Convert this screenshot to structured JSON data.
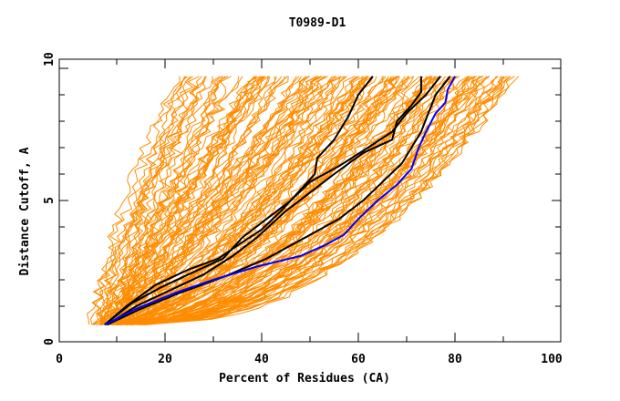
{
  "chart_data": {
    "type": "line",
    "title": "T0989-D1",
    "xlabel": "Percent of Residues (CA)",
    "ylabel": "Distance Cutoff, A",
    "xlim": [
      0,
      100
    ],
    "ylim": [
      0,
      10
    ],
    "xticks": [
      0,
      20,
      40,
      60,
      80,
      100
    ],
    "yticks": [
      0,
      5,
      10
    ],
    "grid": false,
    "legend": "none",
    "colors": {
      "models": "#ff8c00",
      "highlight": "#000000",
      "best": "#0000ff",
      "axis": "#000000"
    },
    "highlight_series": [
      {
        "name": "black-1",
        "color": "#000000",
        "points": [
          [
            7.5,
            0.3
          ],
          [
            12,
            1.0
          ],
          [
            18,
            1.8
          ],
          [
            25,
            2.4
          ],
          [
            31,
            2.8
          ],
          [
            35,
            3.3
          ],
          [
            40,
            3.9
          ],
          [
            44,
            4.6
          ],
          [
            48,
            5.4
          ],
          [
            51,
            6.0
          ],
          [
            51.5,
            6.6
          ],
          [
            55,
            7.3
          ],
          [
            58,
            8.2
          ],
          [
            60,
            9.0
          ],
          [
            63,
            9.7
          ]
        ]
      },
      {
        "name": "black-2",
        "color": "#000000",
        "points": [
          [
            7.5,
            0.3
          ],
          [
            13,
            1.1
          ],
          [
            19,
            1.7
          ],
          [
            26,
            2.3
          ],
          [
            32,
            2.8
          ],
          [
            36,
            3.6
          ],
          [
            41,
            4.3
          ],
          [
            46,
            5.0
          ],
          [
            50,
            5.7
          ],
          [
            56,
            6.3
          ],
          [
            62,
            7.0
          ],
          [
            67,
            7.6
          ],
          [
            70,
            8.3
          ],
          [
            74,
            9.0
          ],
          [
            77,
            9.7
          ]
        ]
      },
      {
        "name": "black-3",
        "color": "#000000",
        "points": [
          [
            8,
            0.3
          ],
          [
            14,
            1.0
          ],
          [
            21,
            1.6
          ],
          [
            28,
            2.2
          ],
          [
            34,
            2.9
          ],
          [
            39,
            3.6
          ],
          [
            45,
            4.6
          ],
          [
            50,
            5.3
          ],
          [
            55,
            6.0
          ],
          [
            61,
            6.8
          ],
          [
            67,
            7.3
          ],
          [
            68,
            8.0
          ],
          [
            71,
            8.6
          ],
          [
            73,
            9.1
          ],
          [
            73,
            9.7
          ]
        ]
      },
      {
        "name": "black-4",
        "color": "#000000",
        "points": [
          [
            8,
            0.3
          ],
          [
            15,
            0.9
          ],
          [
            23,
            1.5
          ],
          [
            32,
            2.1
          ],
          [
            41,
            2.8
          ],
          [
            49,
            3.6
          ],
          [
            56,
            4.3
          ],
          [
            61,
            5.0
          ],
          [
            65,
            5.7
          ],
          [
            69,
            6.4
          ],
          [
            71,
            7.0
          ],
          [
            73,
            7.6
          ],
          [
            74.5,
            8.3
          ],
          [
            76,
            9.0
          ],
          [
            79,
            9.7
          ]
        ]
      }
    ],
    "best_series": {
      "name": "blue",
      "color": "#0000ff",
      "points": [
        [
          7.5,
          0.3
        ],
        [
          14,
          0.9
        ],
        [
          22,
          1.5
        ],
        [
          30,
          2.0
        ],
        [
          39,
          2.5
        ],
        [
          48,
          2.9
        ],
        [
          53,
          3.3
        ],
        [
          57,
          3.7
        ],
        [
          60,
          4.3
        ],
        [
          64,
          5.0
        ],
        [
          68,
          5.6
        ],
        [
          71,
          6.2
        ],
        [
          72.5,
          7.0
        ],
        [
          74,
          7.6
        ],
        [
          76,
          8.3
        ],
        [
          78,
          8.7
        ],
        [
          78.5,
          9.2
        ],
        [
          80,
          9.7
        ]
      ]
    },
    "model_envelope": {
      "description": "Many orange model curves from x≈4 to x≈92 at cutoffs 0.3 to 9.7",
      "start_x_range": [
        4,
        22
      ],
      "end_x_range": [
        22,
        92
      ],
      "count_estimate": 150
    }
  }
}
